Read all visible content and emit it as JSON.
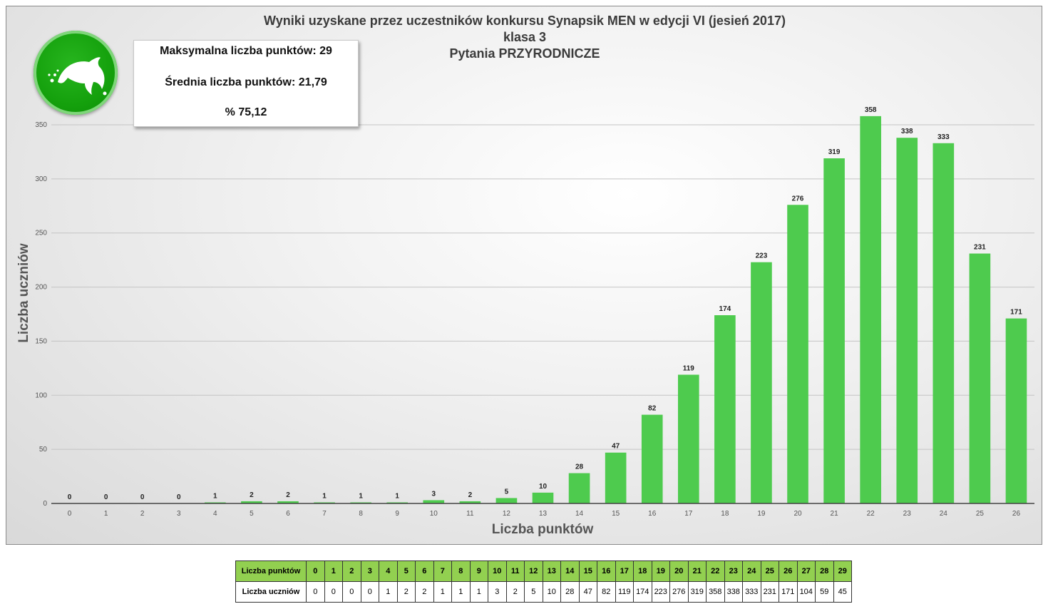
{
  "chart_data": {
    "type": "bar",
    "title": [
      "Wyniki uzyskane przez uczestników konkursu Synapsik MEN w edycji VI (jesień 2017)",
      "klasa 3",
      "Pytania PRZYRODNICZE"
    ],
    "xlabel": "Liczba punktów",
    "ylabel": "Liczba uczniów",
    "categories": [
      "0",
      "1",
      "2",
      "3",
      "4",
      "5",
      "6",
      "7",
      "8",
      "9",
      "10",
      "11",
      "12",
      "13",
      "14",
      "15",
      "16",
      "17",
      "18",
      "19",
      "20",
      "21",
      "22",
      "23",
      "24",
      "25",
      "26"
    ],
    "values": [
      0,
      0,
      0,
      0,
      1,
      2,
      2,
      1,
      1,
      1,
      3,
      2,
      5,
      10,
      28,
      47,
      82,
      119,
      174,
      223,
      276,
      319,
      358,
      338,
      333,
      231,
      171
    ],
    "ylim": [
      0,
      350
    ],
    "yticks": [
      0,
      50,
      100,
      150,
      200,
      250,
      300,
      350
    ],
    "grid": true,
    "bar_color": "#4ecb4e"
  },
  "stats": {
    "max_points": "Maksymalna liczba punktów: 29",
    "mean_points": "Średnia liczba punktów: 21,79",
    "percent": "% 75,12"
  },
  "logo": {
    "icon": "dolphin-icon",
    "color": "#14a00c"
  },
  "table": {
    "row_labels": [
      "Liczba punktów",
      "Liczba uczniów"
    ],
    "points": [
      "0",
      "1",
      "2",
      "3",
      "4",
      "5",
      "6",
      "7",
      "8",
      "9",
      "10",
      "11",
      "12",
      "13",
      "14",
      "15",
      "16",
      "17",
      "18",
      "19",
      "20",
      "21",
      "22",
      "23",
      "24",
      "25",
      "26",
      "27",
      "28",
      "29"
    ],
    "students": [
      "0",
      "0",
      "0",
      "0",
      "1",
      "2",
      "2",
      "1",
      "1",
      "1",
      "3",
      "2",
      "5",
      "10",
      "28",
      "47",
      "82",
      "119",
      "174",
      "223",
      "276",
      "319",
      "358",
      "338",
      "333",
      "231",
      "171",
      "104",
      "59",
      "45"
    ]
  }
}
